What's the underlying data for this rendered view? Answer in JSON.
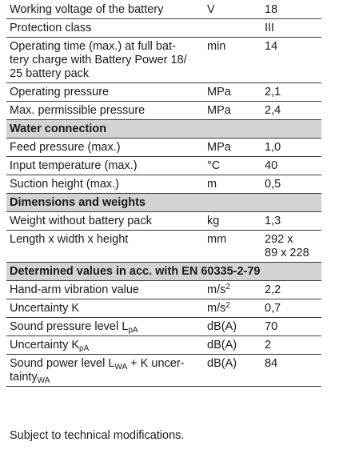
{
  "rows": [
    {
      "label": "Working voltage of the battery",
      "unit": "V",
      "value": "18"
    },
    {
      "label": "Protection class",
      "unit": "",
      "value": "III"
    },
    {
      "label": "Operating time (max.) at full bat-",
      "label2": "tery charge with Battery Power 18/",
      "label3": "25 battery pack",
      "unit": "min",
      "value": "14"
    },
    {
      "label": "Operating pressure",
      "unit": "MPa",
      "value": "2,1"
    },
    {
      "label": "Max. permissible pressure",
      "unit": "MPa",
      "value": "2,4"
    }
  ],
  "sections": {
    "water": "Water connection",
    "dimensions": "Dimensions and weights",
    "determined": "Determined values in acc. with EN 60335-2-79"
  },
  "water_rows": [
    {
      "label": "Feed pressure (max.)",
      "unit": "MPa",
      "value": "1,0"
    },
    {
      "label": "Input temperature (max.)",
      "unit": "°C",
      "value": "40"
    },
    {
      "label": "Suction height (max.)",
      "unit": "m",
      "value": "0,5"
    }
  ],
  "dim_rows": [
    {
      "label": "Weight without battery pack",
      "unit": "kg",
      "value": "1,3"
    },
    {
      "label": "Length x width x height",
      "unit": "mm",
      "value": "292 x",
      "value2": "89 x 228"
    }
  ],
  "det_rows": [
    {
      "label": "Hand-arm vibration value",
      "unit_base": "m/s",
      "unit_sup": "2",
      "value": "2,2"
    },
    {
      "label": "Uncertainty K",
      "unit_base": "m/s",
      "unit_sup": "2",
      "value": "0,7"
    },
    {
      "label_base": "Sound pressure level L",
      "label_sub": "pA",
      "unit": "dB(A)",
      "value": "70"
    },
    {
      "label_base": "Uncertainty K",
      "label_sub": "pA",
      "unit": "dB(A)",
      "value": "2"
    },
    {
      "label_base": "Sound power level L",
      "label_sub": "WA",
      "label_rest": " + K uncer-",
      "label2_base": "tainty",
      "label2_sub": "WA",
      "unit": "dB(A)",
      "value": "84"
    }
  ],
  "footnote": "Subject to technical modifications."
}
